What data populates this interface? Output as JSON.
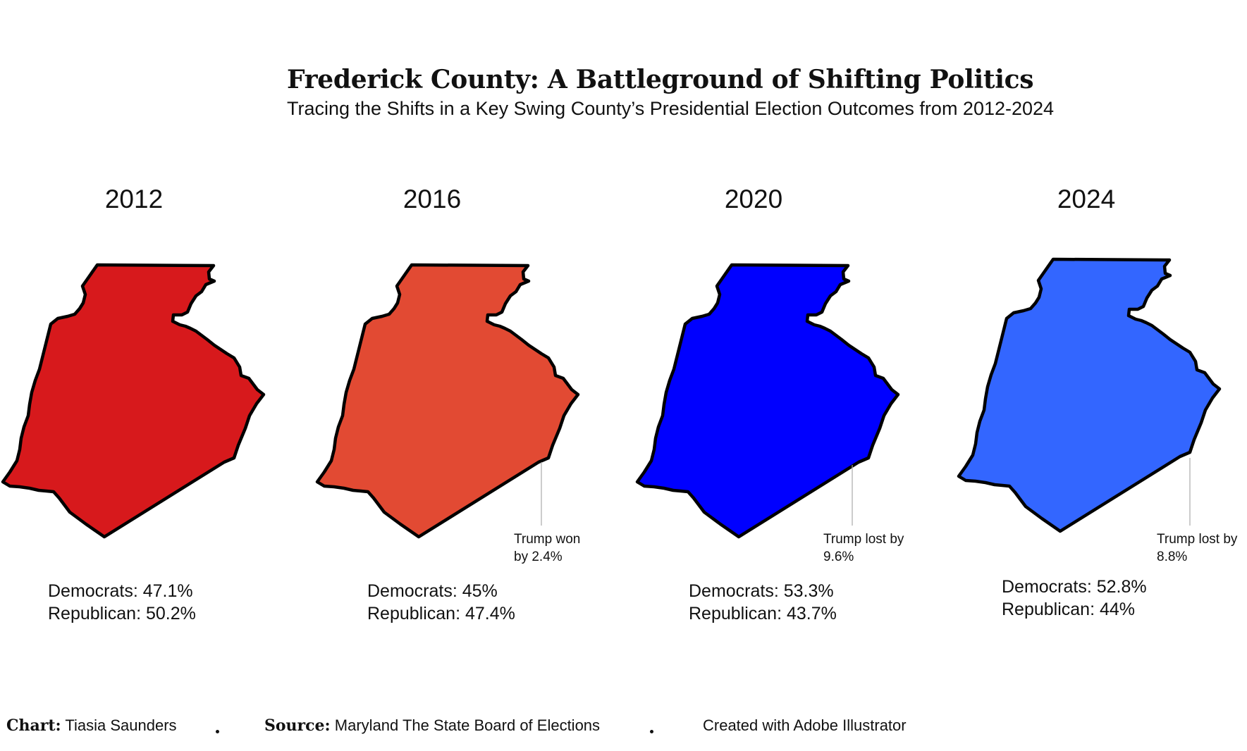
{
  "title": "Frederick County: A Battleground of Shifting Politics",
  "subtitle": "Tracing the Shifts in a Key Swing County’s Presidential Election Outcomes from 2012-2024",
  "maps": [
    {
      "year": "2012",
      "fill": "#D7191C",
      "democrats": "Democrats: 47.1%",
      "republican": "Republican: 50.2%",
      "annotation": null
    },
    {
      "year": "2016",
      "fill": "#E24A33",
      "democrats": "Democrats: 45%",
      "republican": "Republican: 47.4%",
      "annotation": [
        "Trump won",
        "by 2.4%"
      ]
    },
    {
      "year": "2020",
      "fill": "#0000FF",
      "democrats": "Democrats: 53.3%",
      "republican": "Republican: 43.7%",
      "annotation": [
        "Trump lost by",
        "9.6%"
      ]
    },
    {
      "year": "2024",
      "fill": "#3366FF",
      "democrats": "Democrats: 52.8%",
      "republican": "Republican: 44%",
      "annotation": [
        "Trump lost by",
        "8.8%"
      ]
    }
  ],
  "footer": {
    "chart_label": "Chart:",
    "chart_author": "Tiasia Saunders",
    "source_label": "Source:",
    "source_text": "Maryland The State Board of Elections",
    "tool": "Created with Adobe Illustrator"
  },
  "colors": {
    "outline": "#000000",
    "leader_line": "#AAAAAA"
  }
}
